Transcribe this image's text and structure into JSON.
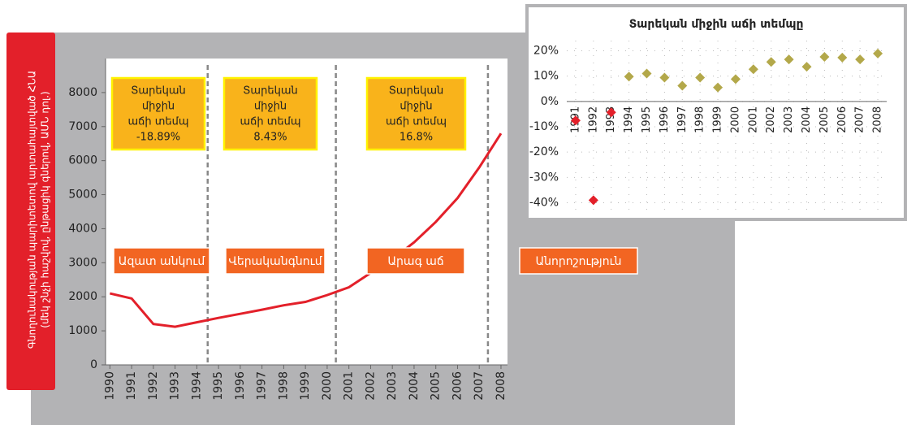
{
  "chart_data": [
    {
      "type": "line",
      "y_label_lines": [
        "Գնողունակության պարիտետով արտահայտված ՀՆԱ",
        "(մեկ շնչի հաշվով, ընթացիկ գներով, ԱՄՆ դոլ.)"
      ],
      "x": [
        1990,
        1991,
        1992,
        1993,
        1994,
        1995,
        1996,
        1997,
        1998,
        1999,
        2000,
        2001,
        2002,
        2003,
        2004,
        2005,
        2006,
        2007,
        2008
      ],
      "series": [
        {
          "color": "#e3202a",
          "values": [
            2100,
            1950,
            1200,
            1120,
            1250,
            1380,
            1500,
            1620,
            1750,
            1850,
            2050,
            2280,
            2700,
            3100,
            3600,
            4200,
            4900,
            5800,
            6800
          ]
        }
      ],
      "xlim": [
        1989.8,
        2008.3
      ],
      "xticks": [
        1990,
        1991,
        1992,
        1993,
        1994,
        1995,
        1996,
        1997,
        1998,
        1999,
        2000,
        2001,
        2002,
        2003,
        2004,
        2005,
        2006,
        2007,
        2008
      ],
      "ylim": [
        0,
        9000
      ],
      "yticks": [
        0,
        1000,
        2000,
        3000,
        4000,
        5000,
        6000,
        7000,
        8000
      ],
      "dividers": [
        1994.5,
        2000.4,
        2007.4
      ],
      "rate_boxes": [
        {
          "lines": [
            "Տարեկան",
            "միջին",
            "աճի տեմպ",
            "-18.89%"
          ]
        },
        {
          "lines": [
            "Տարեկան",
            "միջին",
            "աճի տեմպ",
            "8.43%"
          ]
        },
        {
          "lines": [
            "Տարեկան",
            "միջին",
            "աճի տեմպ",
            "16.8%"
          ]
        }
      ],
      "phases": [
        "Ազատ անկում",
        "Վերականգնում",
        "Արագ աճ",
        "Անորոշություն"
      ]
    },
    {
      "type": "scatter",
      "title": "Տարեկան միջին աճի տեմպը",
      "categories": [
        "1991",
        "1992",
        "1993",
        "1994",
        "1995",
        "1996",
        "1997",
        "1998",
        "1999",
        "2000",
        "2001",
        "2002",
        "2003",
        "2004",
        "2005",
        "2006",
        "2007",
        "2008"
      ],
      "values": [
        -7.5,
        -39,
        -4.3,
        9.8,
        11,
        9.4,
        6.2,
        9.4,
        5.5,
        8.8,
        12.7,
        15.6,
        16.6,
        13.7,
        17.6,
        17.3,
        16.6,
        18.9
      ],
      "colors": [
        "#e3202a",
        "#e3202a",
        "#e3202a",
        "#b3a84a",
        "#b3a84a",
        "#b3a84a",
        "#b3a84a",
        "#b3a84a",
        "#b3a84a",
        "#b3a84a",
        "#b3a84a",
        "#b3a84a",
        "#b3a84a",
        "#b3a84a",
        "#b3a84a",
        "#b3a84a",
        "#b3a84a",
        "#b3a84a"
      ],
      "ylim": [
        -44,
        24
      ],
      "yticks": [
        {
          "value": 20,
          "label": "20%"
        },
        {
          "value": 10,
          "label": "10%"
        },
        {
          "value": 0,
          "label": "0%"
        },
        {
          "value": -10,
          "label": "-10%"
        },
        {
          "value": -20,
          "label": "-20%"
        },
        {
          "value": -30,
          "label": "-30%"
        },
        {
          "value": -40,
          "label": "-40%"
        }
      ],
      "grid": true
    }
  ]
}
